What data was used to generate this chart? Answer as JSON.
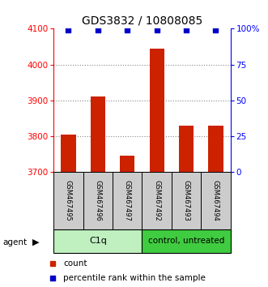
{
  "title": "GDS3832 / 10808085",
  "samples": [
    "GSM467495",
    "GSM467496",
    "GSM467497",
    "GSM467492",
    "GSM467493",
    "GSM467494"
  ],
  "counts": [
    3805,
    3910,
    3745,
    4045,
    3830,
    3830
  ],
  "percentiles": [
    99,
    99,
    99,
    99,
    99,
    99
  ],
  "ylim_left": [
    3700,
    4100
  ],
  "ylim_right": [
    0,
    100
  ],
  "yticks_left": [
    3700,
    3800,
    3900,
    4000,
    4100
  ],
  "yticks_right": [
    0,
    25,
    50,
    75,
    100
  ],
  "ytick_labels_right": [
    "0",
    "25",
    "50",
    "75",
    "100%"
  ],
  "groups": [
    {
      "label": "C1q",
      "indices": [
        0,
        1,
        2
      ],
      "color": "#c0f0c0"
    },
    {
      "label": "control, untreated",
      "indices": [
        3,
        4,
        5
      ],
      "color": "#40cc40"
    }
  ],
  "bar_color": "#cc2200",
  "percentile_color": "#0000cc",
  "bar_width": 0.5,
  "grid_color": "#888888",
  "background_color": "#ffffff",
  "legend_count_color": "#cc2200",
  "legend_percentile_color": "#0000cc",
  "agent_label": "agent",
  "sample_box_color": "#cccccc",
  "title_fontsize": 10
}
